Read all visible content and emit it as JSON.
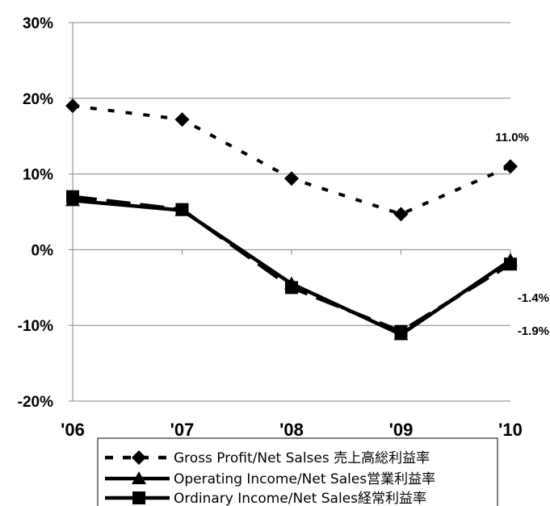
{
  "chart_data": {
    "type": "line",
    "categories": [
      "'06",
      "'07",
      "'08",
      "'09",
      "'10"
    ],
    "ylim": [
      -20,
      30
    ],
    "yticks": [
      -20,
      -10,
      0,
      10,
      20,
      30
    ],
    "ytick_labels": [
      "-20%",
      "-10%",
      "0%",
      "10%",
      "20%",
      "30%"
    ],
    "grid": true,
    "legend_position": "bottom",
    "series": [
      {
        "name": "Gross Profit/Net Salses 売上高総利益率",
        "values": [
          19.0,
          17.2,
          9.4,
          4.7,
          11.0
        ],
        "marker": "diamond",
        "line": "dashed"
      },
      {
        "name": "Operating Income/Net Sales営業利益率",
        "values": [
          6.5,
          5.2,
          -4.5,
          -11.2,
          -1.4
        ],
        "marker": "triangle",
        "line": "solid"
      },
      {
        "name": "Ordinary Income/Net Sales経常利益率",
        "values": [
          7.0,
          5.3,
          -5.0,
          -10.8,
          -1.9
        ],
        "marker": "square",
        "line": "long-dash"
      }
    ],
    "data_labels": [
      {
        "series": 0,
        "index": 4,
        "text": "11.0%"
      },
      {
        "series": 1,
        "index": 4,
        "text": "-1.4%"
      },
      {
        "series": 2,
        "index": 4,
        "text": "-1.9%"
      }
    ],
    "colors": {
      "line": "#000000",
      "grid": "#808080",
      "axis": "#808080"
    }
  }
}
